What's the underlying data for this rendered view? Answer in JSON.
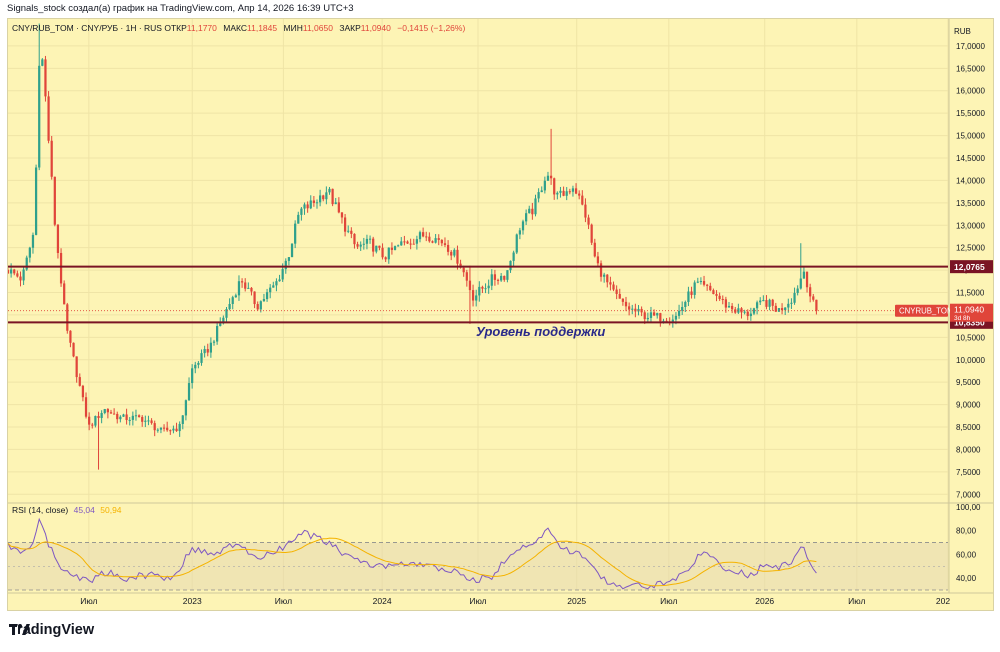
{
  "caption": "Signals_stock создал(а) график на TradingView.com, Апр 14, 2026 16:39 UTC+3",
  "legend": {
    "symbol": "CNY/RUB_TOM · CNY/РУБ · 1Н · RUS",
    "open_label": "ОТКР",
    "open_value": "11,1770",
    "high_label": "МАКС",
    "high_value": "11,1845",
    "low_label": "МИН",
    "low_value": "11,0650",
    "close_label": "ЗАКР",
    "close_value": "11,0940",
    "change_value": "−0,1415 (−1,26%)"
  },
  "annotation": "Уровень поддержки",
  "logo_text": "TradingView",
  "colors": {
    "up": "#2fa08c",
    "down": "#e0453a",
    "level": "#7a1424",
    "background": "#fdf4b5",
    "rsi": "#7e57c2",
    "rsi_ma": "#f5b300"
  },
  "chart_data": [
    {
      "type": "candlestick",
      "title": "CNY/RUB_TOM · CNY/РУБ · 1Н · RUS",
      "currency_label": "RUB",
      "ylim": [
        6.85,
        17.6
      ],
      "ytick_values": [
        7,
        7.5,
        8,
        8.5,
        9,
        9.5,
        10,
        10.5,
        11,
        11.5,
        12,
        12.5,
        13,
        13.5,
        14,
        14.5,
        15,
        15.5,
        16,
        16.5,
        17
      ],
      "ytick_labels": [
        "7,0000",
        "7,5000",
        "8,0000",
        "8,5000",
        "9,0000",
        "9,5000",
        "10,0000",
        "10,5000",
        "11,0000",
        "11,5000",
        "12,0000",
        "12,5000",
        "13,0000",
        "13,5000",
        "14,0000",
        "14,5000",
        "15,0000",
        "15,5000",
        "16,0000",
        "16,5000",
        "17,0000"
      ],
      "xlim": [
        0,
        100
      ],
      "xtick_positions": [
        8.6,
        19.6,
        29.3,
        39.8,
        50.0,
        60.5,
        70.3,
        80.5,
        90.3,
        100.0
      ],
      "xtick_labels": [
        "Июл",
        "2023",
        "Июл",
        "2024",
        "Июл",
        "2025",
        "Июл",
        "2026",
        "Июл",
        "202"
      ],
      "levels": [
        {
          "name": "resistance",
          "value": 12.0765,
          "label": "12,0765"
        },
        {
          "name": "support",
          "value": 10.835,
          "label": "10,8350"
        }
      ],
      "last_price": {
        "value": 11.094,
        "symbol": "CNYRUB_TOM",
        "label": "11,0940",
        "countdown": "3d 8h"
      },
      "anchors": [
        {
          "t": 0,
          "v": 12.0
        },
        {
          "t": 1.5,
          "v": 11.8
        },
        {
          "t": 2.8,
          "v": 12.9
        },
        {
          "t": 3.4,
          "v": 17.3
        },
        {
          "t": 4.0,
          "v": 15.8
        },
        {
          "t": 5.0,
          "v": 13.0
        },
        {
          "t": 6.2,
          "v": 10.7
        },
        {
          "t": 7.2,
          "v": 9.8
        },
        {
          "t": 8.6,
          "v": 8.5
        },
        {
          "t": 10.2,
          "v": 8.9
        },
        {
          "t": 12.0,
          "v": 8.7
        },
        {
          "t": 14.2,
          "v": 8.7
        },
        {
          "t": 16.3,
          "v": 8.4
        },
        {
          "t": 18.3,
          "v": 8.5
        },
        {
          "t": 19.6,
          "v": 9.8
        },
        {
          "t": 21.5,
          "v": 10.3
        },
        {
          "t": 23.0,
          "v": 11.0
        },
        {
          "t": 24.8,
          "v": 11.8
        },
        {
          "t": 26.5,
          "v": 11.2
        },
        {
          "t": 28.5,
          "v": 11.7
        },
        {
          "t": 29.8,
          "v": 12.3
        },
        {
          "t": 31.0,
          "v": 13.3
        },
        {
          "t": 32.5,
          "v": 13.5
        },
        {
          "t": 34.0,
          "v": 13.8
        },
        {
          "t": 35.3,
          "v": 13.2
        },
        {
          "t": 37.0,
          "v": 12.5
        },
        {
          "t": 38.5,
          "v": 12.6
        },
        {
          "t": 40.0,
          "v": 12.3
        },
        {
          "t": 42.0,
          "v": 12.6
        },
        {
          "t": 44.5,
          "v": 12.8
        },
        {
          "t": 46.5,
          "v": 12.6
        },
        {
          "t": 48.0,
          "v": 12.2
        },
        {
          "t": 49.5,
          "v": 11.4
        },
        {
          "t": 51.5,
          "v": 11.8
        },
        {
          "t": 53.0,
          "v": 11.9
        },
        {
          "t": 54.5,
          "v": 13.0
        },
        {
          "t": 56.0,
          "v": 13.4
        },
        {
          "t": 57.3,
          "v": 14.2
        },
        {
          "t": 58.5,
          "v": 13.6
        },
        {
          "t": 60.2,
          "v": 13.9
        },
        {
          "t": 61.5,
          "v": 13.2
        },
        {
          "t": 62.5,
          "v": 12.2
        },
        {
          "t": 64.0,
          "v": 11.6
        },
        {
          "t": 65.5,
          "v": 11.2
        },
        {
          "t": 67.5,
          "v": 11.0
        },
        {
          "t": 69.0,
          "v": 10.95
        },
        {
          "t": 71.0,
          "v": 10.95
        },
        {
          "t": 73.2,
          "v": 11.7
        },
        {
          "t": 75.0,
          "v": 11.5
        },
        {
          "t": 76.5,
          "v": 11.2
        },
        {
          "t": 78.5,
          "v": 11.0
        },
        {
          "t": 80.5,
          "v": 11.3
        },
        {
          "t": 82.0,
          "v": 11.1
        },
        {
          "t": 83.5,
          "v": 11.4
        },
        {
          "t": 84.7,
          "v": 12.0
        },
        {
          "t": 85.5,
          "v": 11.3
        },
        {
          "t": 86.0,
          "v": 11.094
        }
      ],
      "spikes": [
        {
          "t": 3.4,
          "high": 17.5,
          "low": 16.2
        },
        {
          "t": 9.6,
          "high": 8.6,
          "low": 7.55
        },
        {
          "t": 49.0,
          "high": 12.1,
          "low": 10.8
        },
        {
          "t": 57.8,
          "high": 15.15,
          "low": 13.9
        },
        {
          "t": 84.5,
          "high": 12.6,
          "low": 11.8
        }
      ]
    },
    {
      "type": "line",
      "title": "RSI (14, close)",
      "legend": [
        {
          "name": "RSI",
          "value": "45,04"
        },
        {
          "name": "MA",
          "value": "50,94"
        }
      ],
      "ylim": [
        30,
        100
      ],
      "ytick_values": [
        40,
        60,
        80,
        100
      ],
      "ytick_labels": [
        "40,00",
        "60,00",
        "80,00",
        "100,00"
      ],
      "band": [
        30,
        70
      ],
      "mid": 50,
      "anchors": [
        {
          "t": 0,
          "v": 68
        },
        {
          "t": 1.5,
          "v": 60
        },
        {
          "t": 2.8,
          "v": 72
        },
        {
          "t": 3.4,
          "v": 92
        },
        {
          "t": 4.2,
          "v": 70
        },
        {
          "t": 5.5,
          "v": 50
        },
        {
          "t": 7.0,
          "v": 42
        },
        {
          "t": 8.6,
          "v": 38
        },
        {
          "t": 10.5,
          "v": 45
        },
        {
          "t": 12.5,
          "v": 40
        },
        {
          "t": 15.0,
          "v": 43
        },
        {
          "t": 17.5,
          "v": 40
        },
        {
          "t": 19.6,
          "v": 65
        },
        {
          "t": 22.0,
          "v": 60
        },
        {
          "t": 24.5,
          "v": 70
        },
        {
          "t": 26.5,
          "v": 55
        },
        {
          "t": 29.0,
          "v": 65
        },
        {
          "t": 31.5,
          "v": 78
        },
        {
          "t": 33.5,
          "v": 72
        },
        {
          "t": 35.5,
          "v": 62
        },
        {
          "t": 38.0,
          "v": 52
        },
        {
          "t": 40.0,
          "v": 50
        },
        {
          "t": 42.5,
          "v": 52
        },
        {
          "t": 45.0,
          "v": 50
        },
        {
          "t": 47.5,
          "v": 45
        },
        {
          "t": 49.5,
          "v": 38
        },
        {
          "t": 51.5,
          "v": 42
        },
        {
          "t": 54.0,
          "v": 65
        },
        {
          "t": 56.0,
          "v": 70
        },
        {
          "t": 57.5,
          "v": 80
        },
        {
          "t": 59.0,
          "v": 65
        },
        {
          "t": 61.0,
          "v": 60
        },
        {
          "t": 63.0,
          "v": 40
        },
        {
          "t": 65.5,
          "v": 33
        },
        {
          "t": 68.0,
          "v": 34
        },
        {
          "t": 70.5,
          "v": 36
        },
        {
          "t": 72.5,
          "v": 50
        },
        {
          "t": 74.0,
          "v": 62
        },
        {
          "t": 75.5,
          "v": 52
        },
        {
          "t": 77.5,
          "v": 45
        },
        {
          "t": 79.0,
          "v": 42
        },
        {
          "t": 80.5,
          "v": 52
        },
        {
          "t": 82.0,
          "v": 48
        },
        {
          "t": 83.5,
          "v": 55
        },
        {
          "t": 84.5,
          "v": 66
        },
        {
          "t": 86.0,
          "v": 45
        }
      ]
    }
  ]
}
